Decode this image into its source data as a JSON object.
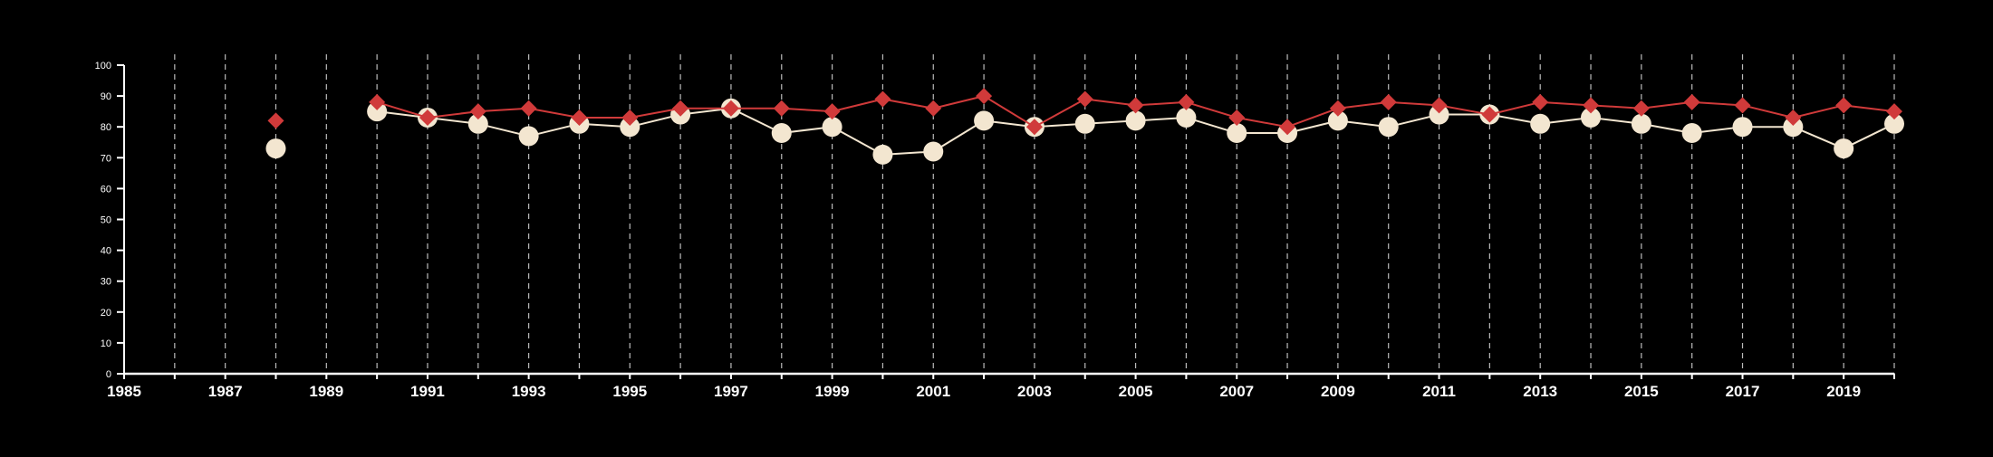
{
  "chart_data": {
    "type": "line",
    "title": "",
    "xlabel": "",
    "ylabel": "",
    "x_range": [
      1985,
      2020
    ],
    "ylim": [
      0,
      100
    ],
    "x_tick_labels": [
      "1985",
      "1987",
      "1989",
      "1991",
      "1993",
      "1995",
      "1997",
      "1999",
      "2001",
      "2003",
      "2005",
      "2007",
      "2009",
      "2011",
      "2013",
      "2015",
      "2017",
      "2019"
    ],
    "y_tick_labels": [
      "0",
      "10",
      "20",
      "30",
      "40",
      "50",
      "60",
      "70",
      "80",
      "90",
      "100"
    ],
    "grid": "vertical dashed lines at each year",
    "background": "#000000",
    "axis_color": "#ffffff",
    "gridline_color": "#bbbbbb",
    "series": [
      {
        "color": "#f3e6d0",
        "marker": "circle",
        "x": [
          1988,
          1990,
          1991,
          1992,
          1993,
          1994,
          1995,
          1996,
          1997,
          1998,
          1999,
          2000,
          2001,
          2002,
          2003,
          2004,
          2005,
          2006,
          2007,
          2008,
          2009,
          2010,
          2011,
          2012,
          2013,
          2014,
          2015,
          2016,
          2017,
          2018,
          2019,
          2020
        ],
        "values": [
          73,
          85,
          83,
          81,
          77,
          81,
          80,
          84,
          86,
          78,
          80,
          71,
          72,
          82,
          80,
          81,
          82,
          83,
          78,
          78,
          82,
          80,
          84,
          84,
          81,
          83,
          81,
          78,
          80,
          80,
          73,
          81
        ]
      },
      {
        "color": "#d03a3a",
        "marker": "diamond",
        "x": [
          1988,
          1990,
          1991,
          1992,
          1993,
          1994,
          1995,
          1996,
          1997,
          1998,
          1999,
          2000,
          2001,
          2002,
          2003,
          2004,
          2005,
          2006,
          2007,
          2008,
          2009,
          2010,
          2011,
          2012,
          2013,
          2014,
          2015,
          2016,
          2017,
          2018,
          2019,
          2020
        ],
        "values": [
          82,
          88,
          83,
          85,
          86,
          83,
          83,
          86,
          86,
          86,
          85,
          89,
          86,
          90,
          80,
          89,
          87,
          88,
          83,
          80,
          86,
          88,
          87,
          84,
          88,
          87,
          86,
          88,
          87,
          83,
          87,
          85
        ]
      }
    ]
  }
}
